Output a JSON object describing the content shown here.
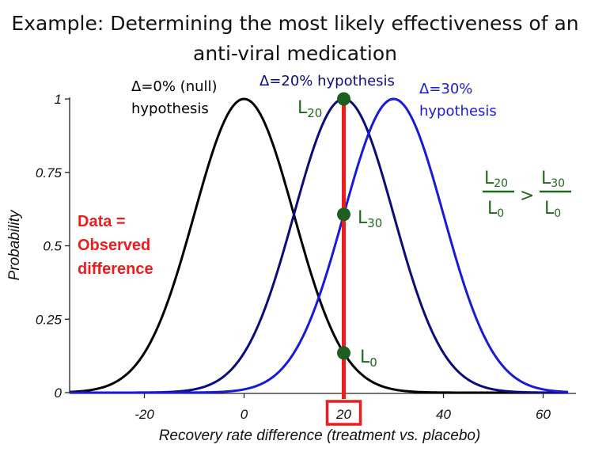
{
  "title": {
    "line1": "Example: Determining the most likely effectiveness of an",
    "line2": "anti-viral medication"
  },
  "chart_data": {
    "type": "line",
    "xlabel": "Recovery rate difference (treatment vs. placebo)",
    "ylabel": "Probability",
    "xlim": [
      -35,
      65
    ],
    "ylim": [
      0,
      1
    ],
    "x_ticks": [
      "-20",
      "0",
      "20",
      "40",
      "60"
    ],
    "x_tick_values": [
      -20,
      0,
      20,
      40,
      60
    ],
    "y_ticks": [
      "0",
      "0.25",
      "0.5",
      "0.75",
      "1"
    ],
    "y_tick_values": [
      0,
      0.25,
      0.5,
      0.75,
      1
    ],
    "grid": false,
    "series": [
      {
        "mean": 0,
        "sd": 10,
        "peak": 1,
        "color": "#000000"
      },
      {
        "mean": 20,
        "sd": 10,
        "peak": 1,
        "color": "#0c0c7a"
      },
      {
        "mean": 30,
        "sd": 10,
        "peak": 1,
        "color": "#1a1ad6"
      }
    ],
    "observed": {
      "x": 20,
      "label": "20",
      "color": "#ee1c1c"
    },
    "likelihood_points": [
      {
        "x": 20,
        "y": 1.0,
        "color": "#1e5e1e"
      },
      {
        "x": 20,
        "y": 0.607,
        "color": "#1e5e1e"
      },
      {
        "x": 20,
        "y": 0.135,
        "color": "#1e5e1e"
      }
    ]
  },
  "annotations": {
    "null": {
      "line1": "Δ=0% (null)",
      "line2": "hypothesis",
      "color": "#000000"
    },
    "h20": {
      "text": "Δ=20% hypothesis",
      "color": "#0c0c7a"
    },
    "h30": {
      "line1": "Δ=30%",
      "line2": "hypothesis",
      "color": "#1a1ad6"
    },
    "data_label": {
      "line1": "Data =",
      "line2": "Observed",
      "line3": "difference"
    },
    "L20": {
      "main": "L",
      "sub": "20"
    },
    "L30": {
      "main": "L",
      "sub": "30"
    },
    "L0": {
      "main": "L",
      "sub": "0"
    },
    "ratio": {
      "left_num": "L",
      "left_num_sub": "20",
      "left_den": "L",
      "left_den_sub": "0",
      "op": ">",
      "right_num": "L",
      "right_num_sub": "30",
      "right_den": "L",
      "right_den_sub": "0"
    }
  }
}
